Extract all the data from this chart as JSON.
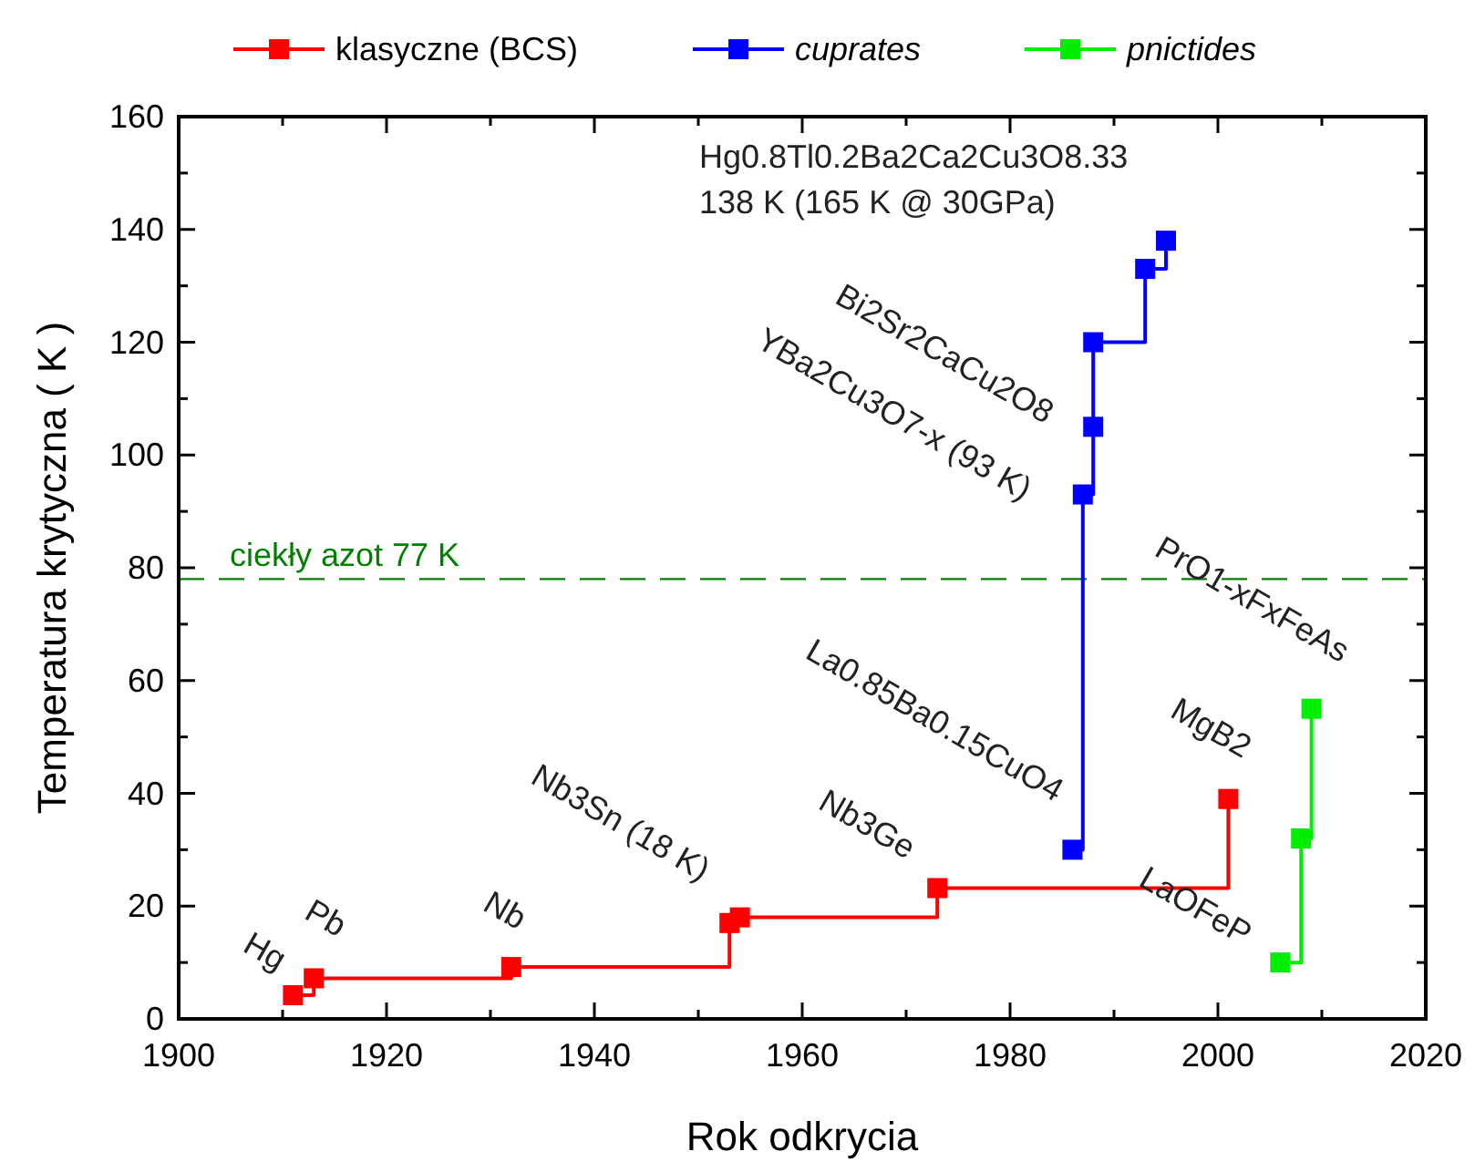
{
  "chart_data": {
    "type": "step",
    "xlabel": "Rok odkrycia",
    "ylabel": "Temperatura krytyczna ( K )",
    "xlim": [
      1900,
      2020
    ],
    "xticks": [
      1900,
      {
        "value": 1910,
        "label": null
      },
      1920,
      {
        "value": 1930,
        "label": null
      },
      1940,
      {
        "value": 1950,
        "label": null
      },
      1960,
      {
        "value": 1970,
        "label": null
      },
      1980,
      {
        "value": 1990,
        "label": null
      },
      2000,
      {
        "value": 2010,
        "label": null
      },
      2020
    ],
    "ylim": [
      0,
      160
    ],
    "yticks": [
      0,
      {
        "value": 10,
        "label": null
      },
      20,
      {
        "value": 30,
        "label": null
      },
      40,
      {
        "value": 50,
        "label": null
      },
      60,
      {
        "value": 70,
        "label": null
      },
      80,
      {
        "value": 90,
        "label": null
      },
      100,
      {
        "value": 110,
        "label": null
      },
      120,
      {
        "value": 130,
        "label": null
      },
      140,
      {
        "value": 150,
        "label": null
      },
      160
    ],
    "legend": "top",
    "marker": "square",
    "line_style": "solid",
    "grid": false,
    "series": [
      {
        "name": "klasyczne (BCS)",
        "color": "#ff0000",
        "x": [
          1911,
          1913,
          1932,
          1953,
          1954,
          1973,
          2001
        ],
        "values": [
          4.2,
          7.2,
          9.2,
          17,
          18,
          23.2,
          39
        ]
      },
      {
        "name": "cuprates",
        "color": "#0000ff",
        "x": [
          1986,
          1987,
          1988,
          1988,
          1993,
          1995
        ],
        "values": [
          30,
          93,
          105,
          120,
          133,
          138
        ]
      },
      {
        "name": "pnictides",
        "color": "#00ee00",
        "x": [
          2006,
          2008,
          2009
        ],
        "values": [
          10,
          32,
          55
        ]
      }
    ],
    "ref_lines": [
      {
        "axis": "y",
        "value": 78,
        "label": "ciekły azot 77 K",
        "color": "#008000",
        "line_style": "dashed"
      }
    ],
    "annotations": [
      {
        "text": "Hg",
        "x": 1911,
        "y": 4.2
      },
      {
        "text": "Pb",
        "x": 1913,
        "y": 7.2
      },
      {
        "text": "Nb",
        "x": 1932,
        "y": 9.2
      },
      {
        "text": "Nb3Sn (18 K)",
        "x": 1954,
        "y": 18
      },
      {
        "text": "Nb3Ge",
        "x": 1973,
        "y": 23.2
      },
      {
        "text": "La0.85Ba0.15CuO4",
        "x": 1986,
        "y": 30
      },
      {
        "text": "YBa2Cu3O7-x (93 K)",
        "x": 1987,
        "y": 93
      },
      {
        "text": "Bi2Sr2CaCu2O8",
        "x": 1988,
        "y": 105
      },
      {
        "text": "MgB2",
        "x": 2001,
        "y": 39
      },
      {
        "text": "PrO1-xFxFeAs",
        "x": 2009,
        "y": 55
      },
      {
        "text": "LaOFeP",
        "x": 2006,
        "y": 10
      },
      {
        "text": "Hg0.8Tl0.2Ba2Ca2Cu3O8.33",
        "x": 1995,
        "y": 138
      },
      "138 K (165 K @ 30GPa)"
    ]
  }
}
